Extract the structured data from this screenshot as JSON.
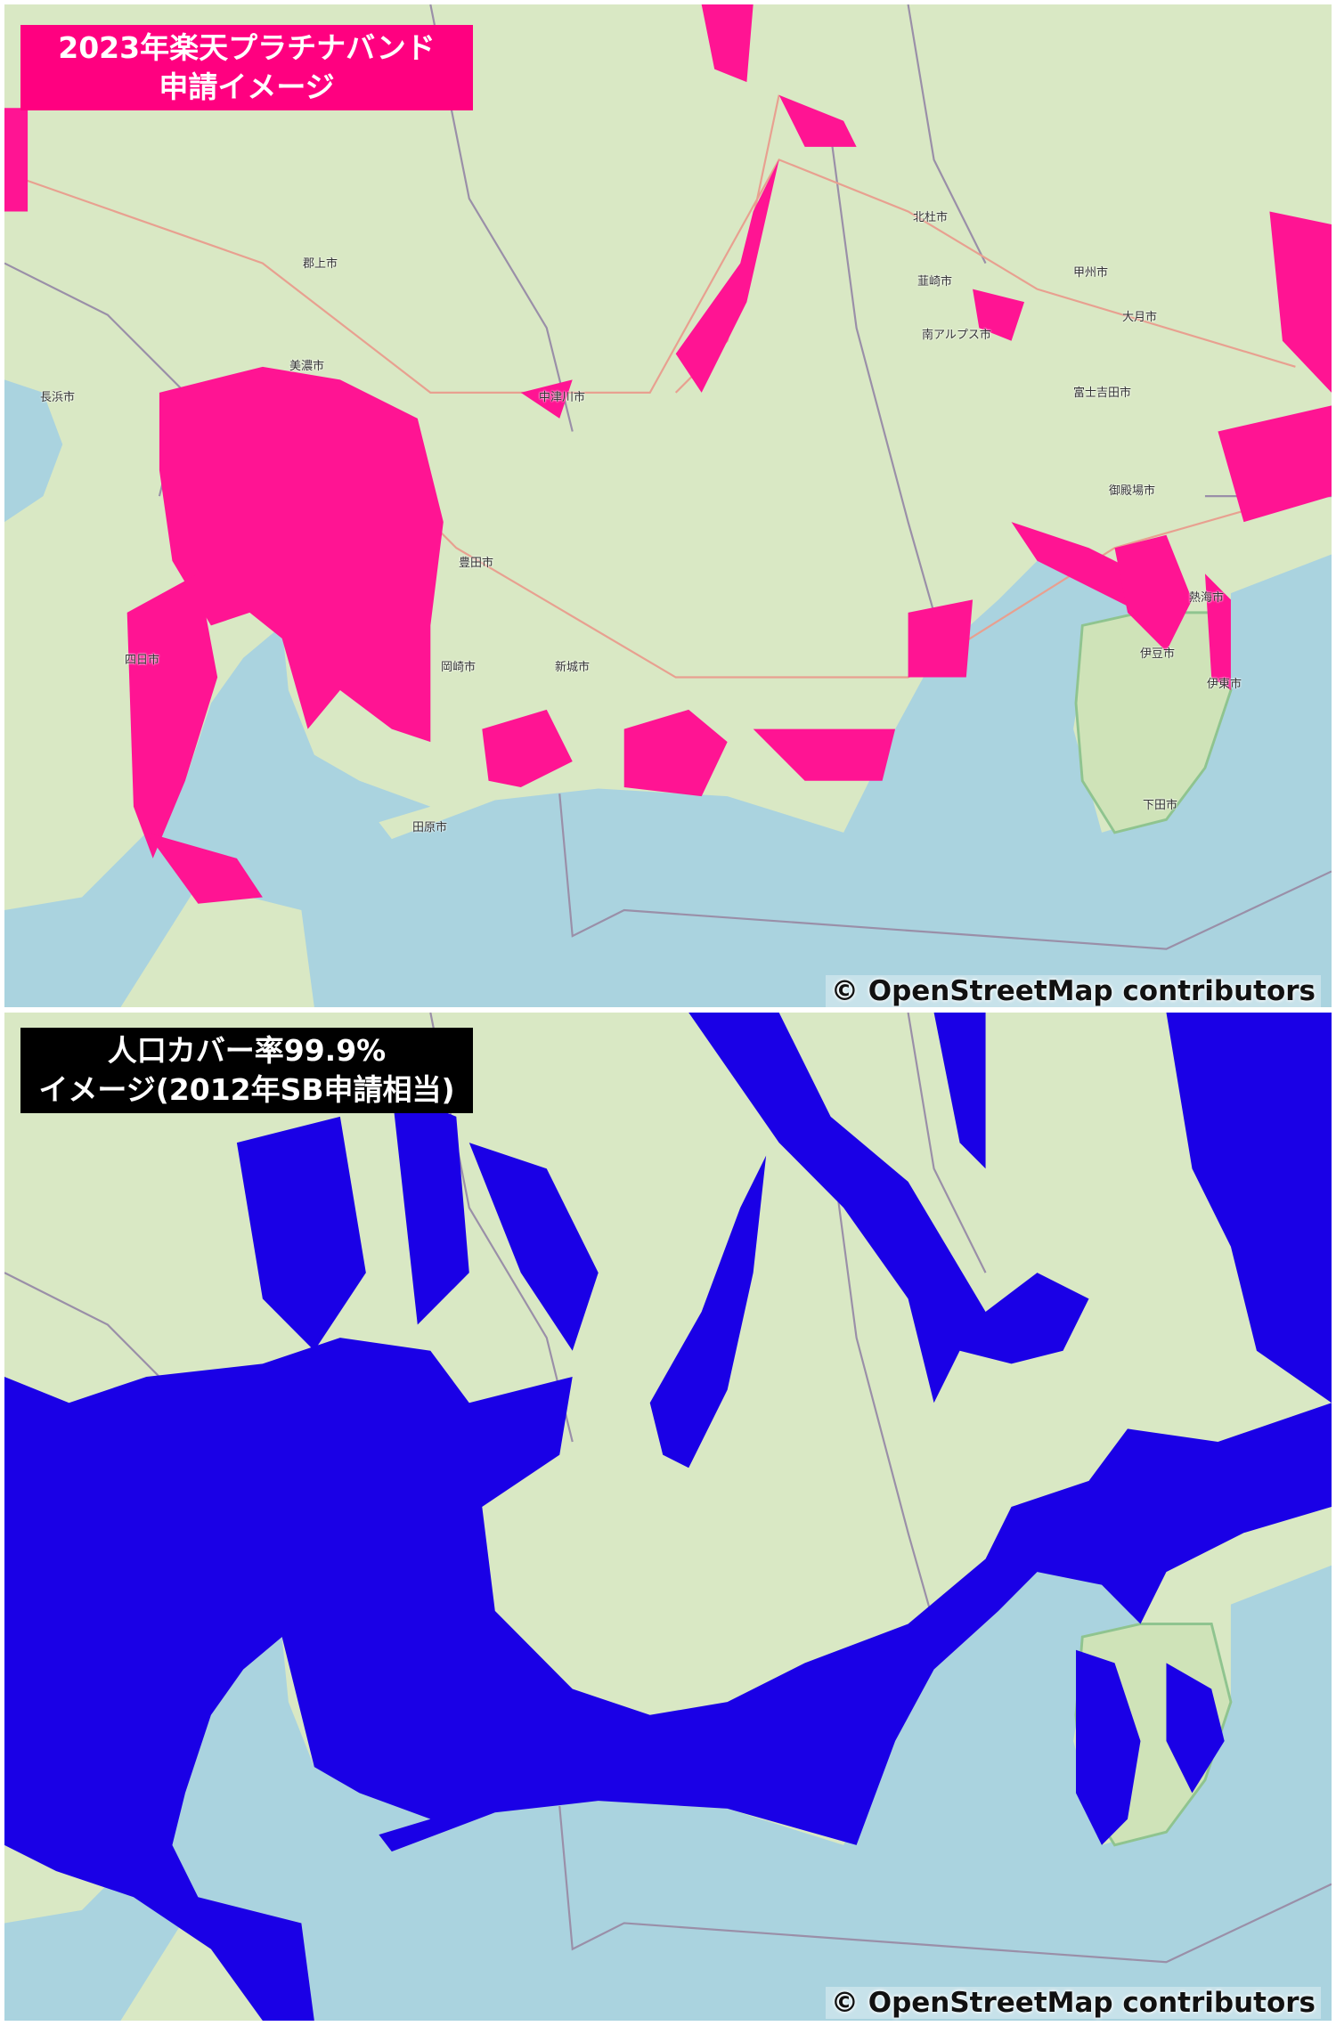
{
  "panels": [
    {
      "title_line1": "2023年楽天プラチナバンド",
      "title_line2": "申請イメージ",
      "coverage_color": "#ff1493",
      "title_bg": "#ff0080",
      "attribution": "© OpenStreetMap contributors"
    },
    {
      "title_line1": "人口カバー率99.9%",
      "title_line2": "イメージ(2012年SB申請相当)",
      "coverage_color": "#1a00e6",
      "title_bg": "#000000",
      "attribution": "© OpenStreetMap contributors"
    }
  ],
  "cities": [
    "豊田市",
    "岡崎市",
    "新城市",
    "田原市",
    "甲州市",
    "大月市",
    "富士吉田市",
    "伊東市",
    "下田市",
    "郡上市",
    "美濃市",
    "中津川市",
    "韮崎市",
    "南アルプス市",
    "御殿場市",
    "熱海市",
    "伊豆市",
    "長浜市",
    "四日市",
    "北杜市"
  ],
  "map_colors": {
    "land": "#d9e8c4",
    "sea": "#aad3df",
    "road": "#e8a090",
    "border": "#9a8fa8"
  }
}
